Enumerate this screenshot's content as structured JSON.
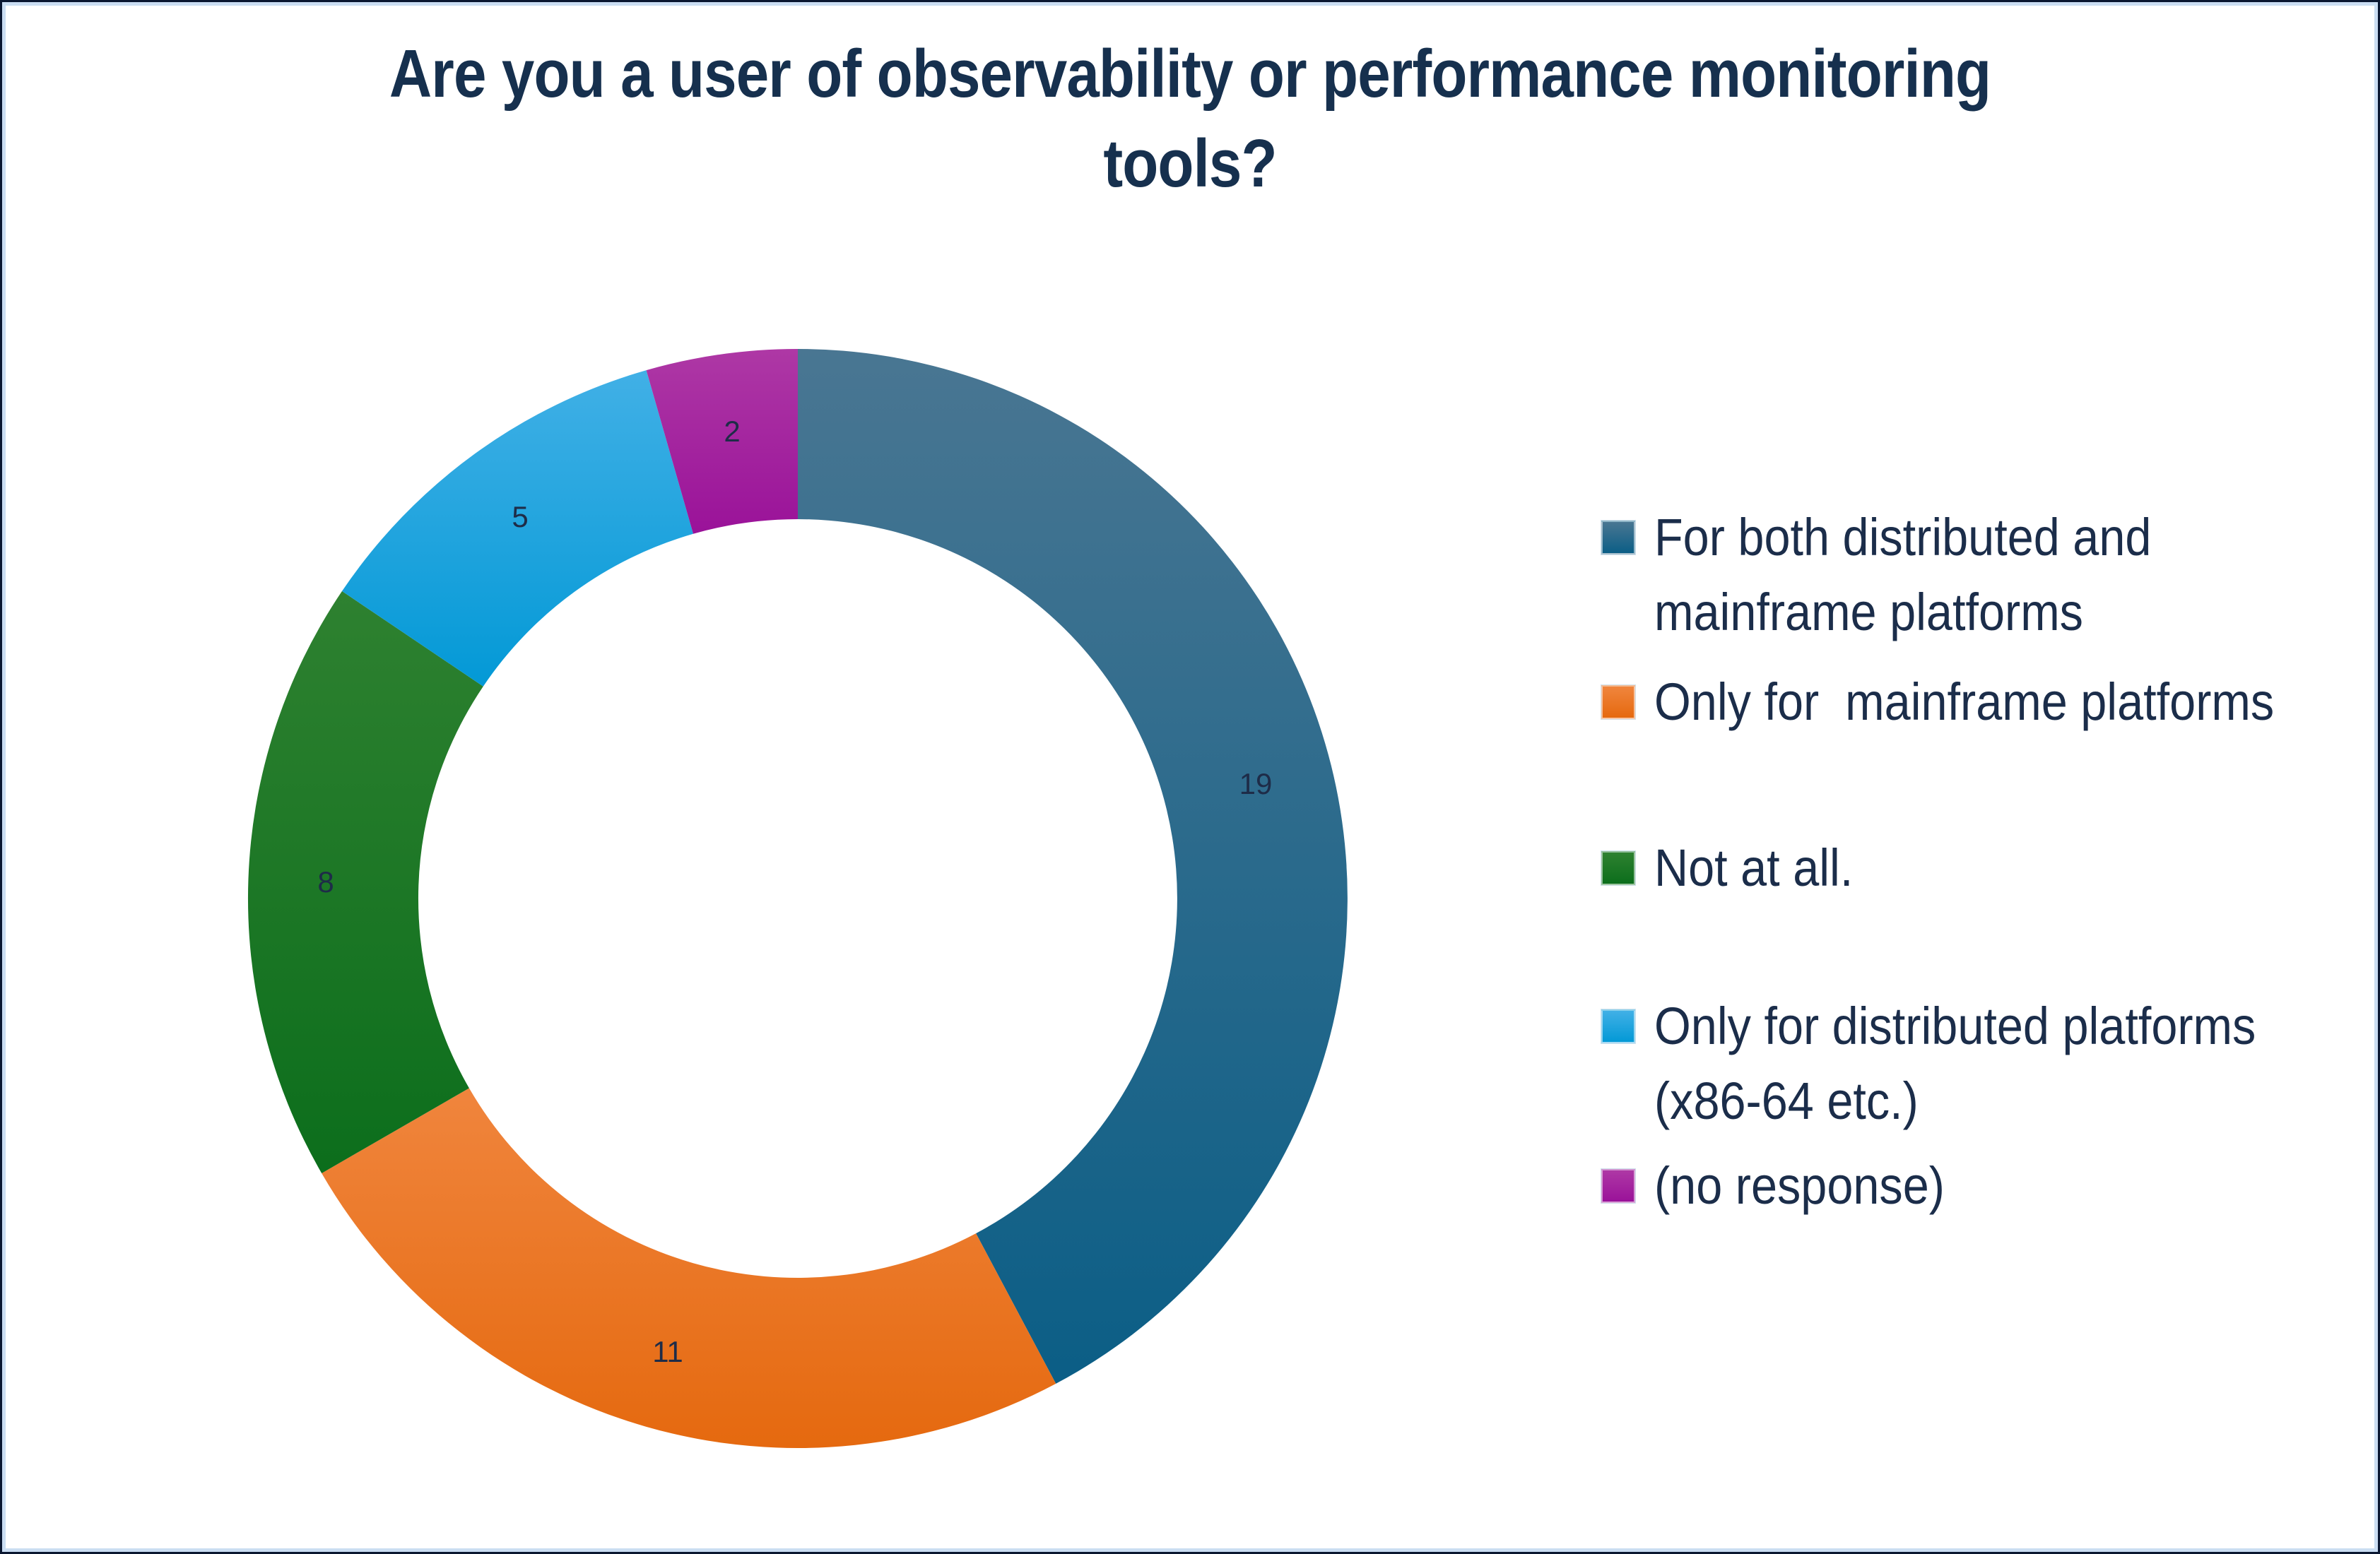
{
  "frame": {
    "background": "#ffffff",
    "outer_border_color": "#0a1730",
    "inner_border_color": "#cadff2"
  },
  "title": {
    "text": "Are you a user of observability or performance monitoring tools?",
    "lines": [
      "Are you a user of observability or performance monitoring",
      "tools?"
    ],
    "color": "#16304e"
  },
  "chart_data": {
    "type": "pie",
    "subtype": "donut",
    "title": "Are you a user of observability or performance monitoring tools?",
    "categories": [
      "For both distributed and mainframe platforms",
      "Only for  mainframe platforms",
      "Not at all.",
      "Only for distributed platforms (x86-64 etc.)",
      "(no response)"
    ],
    "values": [
      19,
      11,
      8,
      5,
      2
    ],
    "total": 45,
    "start_angle_deg": 0,
    "direction": "clockwise",
    "inner_radius_ratio": 0.69,
    "legend_position": "right",
    "grid": false,
    "data_label_color": "#1e2c48",
    "slice_colors": [
      {
        "name": "dark-blue",
        "top": "#497692",
        "bottom": "#0b5e86"
      },
      {
        "name": "orange",
        "top": "#f0853d",
        "bottom": "#e5690f"
      },
      {
        "name": "green",
        "top": "#2e8130",
        "bottom": "#0c6e1c"
      },
      {
        "name": "light-blue",
        "top": "#41b0e6",
        "bottom": "#0399d6"
      },
      {
        "name": "magenta",
        "top": "#ae38a5",
        "bottom": "#9a1299"
      }
    ]
  },
  "legend": {
    "text_color": "#1b2d4a",
    "items": [
      {
        "lines": "For both distributed and\nmainframe platforms",
        "value": 19
      },
      {
        "lines": "Only for  mainframe platforms",
        "value": 11
      },
      {
        "lines": "Not at all.",
        "value": 8
      },
      {
        "lines": "Only for distributed platforms\n(x86-64 etc.)",
        "value": 5
      },
      {
        "lines": "(no response)",
        "value": 2
      }
    ]
  }
}
